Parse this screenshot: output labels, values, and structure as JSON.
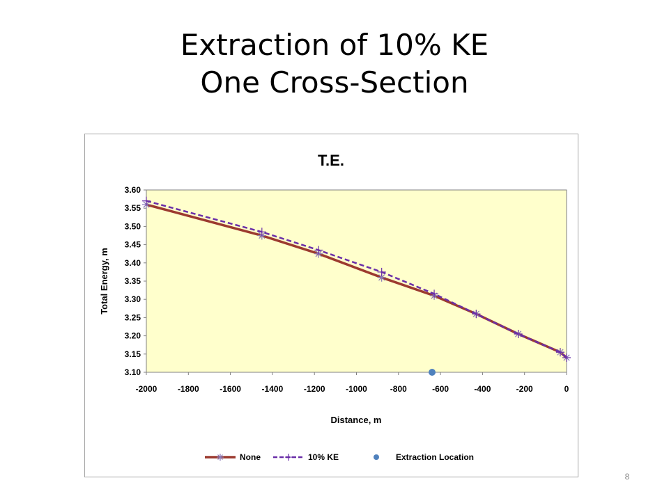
{
  "slide": {
    "title_line1": "Extraction of 10% KE",
    "title_line2": "One Cross-Section",
    "page_number": "8"
  },
  "chart_data": {
    "type": "line",
    "title": "T.E.",
    "xlabel": "Distance, m",
    "ylabel": "Total Energy, m",
    "xlim": [
      -2000,
      0
    ],
    "ylim": [
      3.1,
      3.6
    ],
    "x_ticks": [
      -2000,
      -1800,
      -1600,
      -1400,
      -1200,
      -1000,
      -800,
      -600,
      -400,
      -200,
      0
    ],
    "y_ticks": [
      3.1,
      3.15,
      3.2,
      3.25,
      3.3,
      3.35,
      3.4,
      3.45,
      3.5,
      3.55,
      3.6
    ],
    "x_tick_labels": [
      "-2000",
      "-1800",
      "-1600",
      "-1400",
      "-1200",
      "-1000",
      "-800",
      "-600",
      "-400",
      "-200",
      "0"
    ],
    "y_tick_labels": [
      "3.10",
      "3.15",
      "3.20",
      "3.25",
      "3.30",
      "3.35",
      "3.40",
      "3.45",
      "3.50",
      "3.55",
      "3.60"
    ],
    "grid": false,
    "legend_position": "bottom",
    "plot_background": "#ffffcc",
    "series": [
      {
        "name": "None",
        "color": "#9c3a2f",
        "style": "solid",
        "marker": "asterisk",
        "x": [
          -2000,
          -1450,
          -1180,
          -880,
          -630,
          -430,
          -230,
          -30,
          0
        ],
        "y": [
          3.56,
          3.475,
          3.425,
          3.36,
          3.31,
          3.26,
          3.205,
          3.155,
          3.14
        ]
      },
      {
        "name": "10% KE",
        "color": "#6a2fa8",
        "style": "dashed",
        "marker": "plus",
        "x": [
          -2000,
          -1450,
          -1180,
          -880,
          -630,
          -430,
          -230,
          -30,
          0
        ],
        "y": [
          3.57,
          3.485,
          3.435,
          3.375,
          3.315,
          3.26,
          3.205,
          3.155,
          3.14
        ]
      },
      {
        "name": "Extraction Location",
        "color": "#4f81bd",
        "style": "none",
        "marker": "circle",
        "x": [
          -640
        ],
        "y": [
          3.1
        ]
      }
    ]
  }
}
